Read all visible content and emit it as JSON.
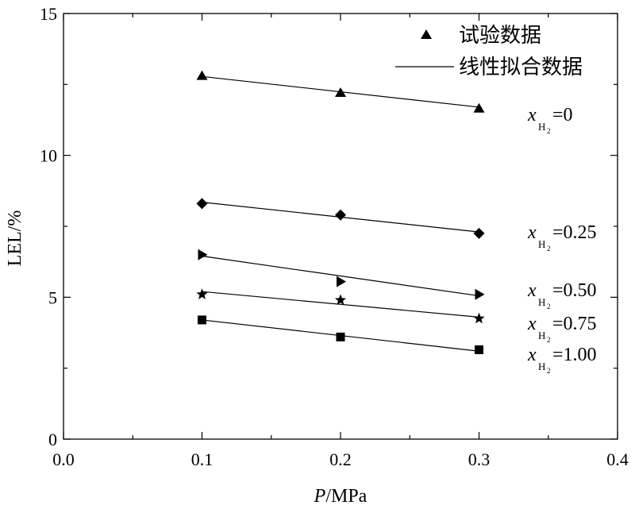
{
  "chart_data": {
    "type": "scatter",
    "x_axis": {
      "label_italic": "P",
      "label_rest": "/MPa",
      "range": [
        0.0,
        0.4
      ],
      "ticks": [
        0.0,
        0.1,
        0.2,
        0.3,
        0.4
      ],
      "tick_labels": [
        "0.0",
        "0.1",
        "0.2",
        "0.3",
        "0.4"
      ]
    },
    "y_axis": {
      "label": "LEL/%",
      "range": [
        0,
        15
      ],
      "ticks": [
        0,
        5,
        10,
        15
      ],
      "tick_labels": [
        "0",
        "5",
        "10",
        "15"
      ]
    },
    "grid": false,
    "legend": {
      "placement": "top-right",
      "marker_label": "试验数据",
      "line_label": "线性拟合数据"
    },
    "series": [
      {
        "id": "h0",
        "label_var": "x",
        "label_sub": "H",
        "label_subsub": "2",
        "label_value": "=0",
        "marker": "triangle",
        "x": [
          0.1,
          0.2,
          0.3
        ],
        "y": [
          12.8,
          12.2,
          11.65
        ],
        "fit": [
          12.78,
          11.7
        ]
      },
      {
        "id": "h025",
        "label_var": "x",
        "label_sub": "H",
        "label_subsub": "2",
        "label_value": "=0.25",
        "marker": "diamond",
        "x": [
          0.1,
          0.2,
          0.3
        ],
        "y": [
          8.3,
          7.9,
          7.25
        ],
        "fit": [
          8.35,
          7.3
        ]
      },
      {
        "id": "h050",
        "label_var": "x",
        "label_sub": "H",
        "label_subsub": "2",
        "label_value": "=0.50",
        "marker": "right-triangle",
        "x": [
          0.1,
          0.2,
          0.3
        ],
        "y": [
          6.5,
          5.55,
          5.1
        ],
        "fit": [
          6.45,
          5.05
        ]
      },
      {
        "id": "h075",
        "label_var": "x",
        "label_sub": "H",
        "label_subsub": "2",
        "label_value": "=0.75",
        "marker": "star",
        "x": [
          0.1,
          0.2,
          0.3
        ],
        "y": [
          5.1,
          4.9,
          4.25
        ],
        "fit": [
          5.2,
          4.3
        ]
      },
      {
        "id": "h100",
        "label_var": "x",
        "label_sub": "H",
        "label_subsub": "2",
        "label_value": "=1.00",
        "marker": "square",
        "x": [
          0.1,
          0.2,
          0.3
        ],
        "y": [
          4.2,
          3.6,
          3.15
        ],
        "fit": [
          4.2,
          3.1
        ]
      }
    ]
  }
}
